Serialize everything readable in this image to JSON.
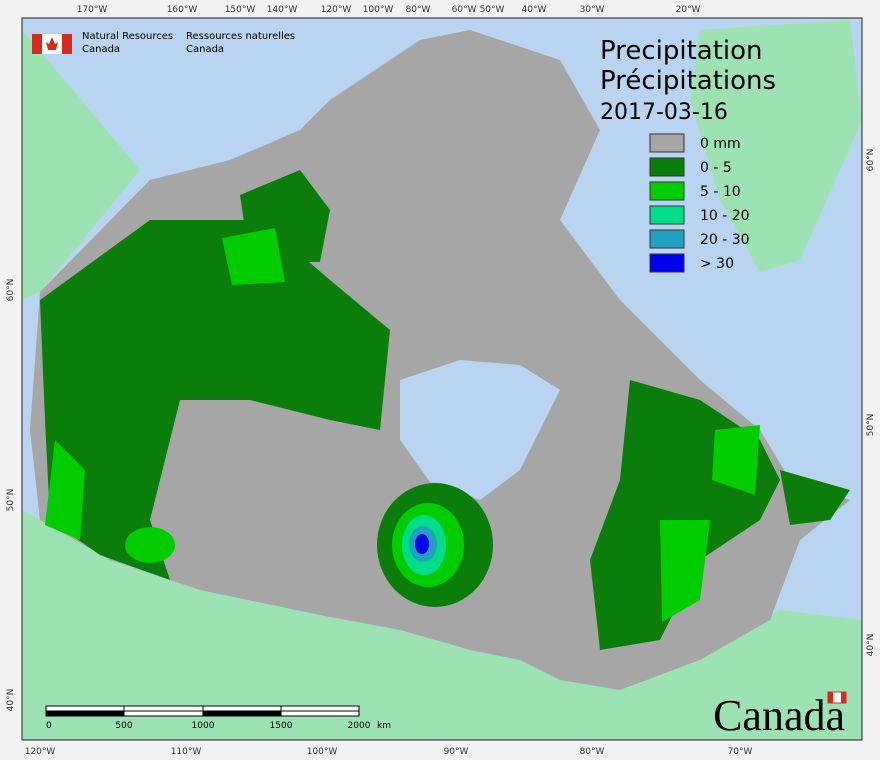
{
  "header": {
    "org_en": [
      "Natural Resources",
      "Canada"
    ],
    "org_fr": [
      "Ressources naturelles",
      "Canada"
    ]
  },
  "title": {
    "en": "Precipitation",
    "fr": "Précipitations",
    "date": "2017-03-16"
  },
  "legend": [
    {
      "label": "0 mm",
      "color": "#a6a6a6"
    },
    {
      "label": "0 - 5",
      "color": "#0a7d0a"
    },
    {
      "label": "5 - 10",
      "color": "#00cc00"
    },
    {
      "label": "10 - 20",
      "color": "#00dd88"
    },
    {
      "label": "20 - 30",
      "color": "#22a0c0"
    },
    {
      "label": "> 30",
      "color": "#0000ee"
    }
  ],
  "graticule": {
    "top": [
      "170°W",
      "160°W",
      "150°W",
      "140°W",
      "120°W",
      "100°W",
      "80°W",
      "60°W",
      "50°W",
      "40°W",
      "30°W",
      "20°W"
    ],
    "bottom": [
      "120°W",
      "110°W",
      "100°W",
      "90°W",
      "80°W",
      "70°W"
    ],
    "left": [
      "60°N",
      "50°N",
      "40°N"
    ],
    "right": [
      "60°N",
      "50°N",
      "40°N"
    ]
  },
  "scale_bar": {
    "labels": [
      "0",
      "500",
      "1000",
      "1500",
      "2000"
    ],
    "unit": "km"
  },
  "wordmark": "Canada"
}
